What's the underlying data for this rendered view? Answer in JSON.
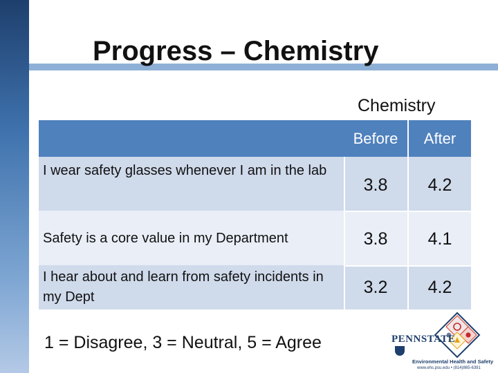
{
  "slide": {
    "title": "Progress – Chemistry"
  },
  "table": {
    "group_header": "Chemistry",
    "columns": [
      "Before",
      "After"
    ],
    "rows": [
      {
        "label": "I wear safety glasses whenever I am in the lab",
        "before": "3.8",
        "after": "4.2"
      },
      {
        "label": "Safety is a core value in my Department",
        "before": "3.8",
        "after": "4.1"
      },
      {
        "label": "I hear about and learn from safety incidents in my Dept",
        "before": "3.2",
        "after": "4.2"
      }
    ]
  },
  "legend": "1 = Disagree, 3 = Neutral, 5 = Agree",
  "logo": {
    "wordmark": "PENNSTATE",
    "department": "Environmental Health and Safety",
    "contact": "www.ehs.psu.edu • (814)865-6391"
  },
  "colors": {
    "header_blue": "#4f81bd",
    "row_band_1": "#cfdaeb",
    "row_band_2": "#e9eef7",
    "sidebar_blue": "#3f72ad"
  }
}
